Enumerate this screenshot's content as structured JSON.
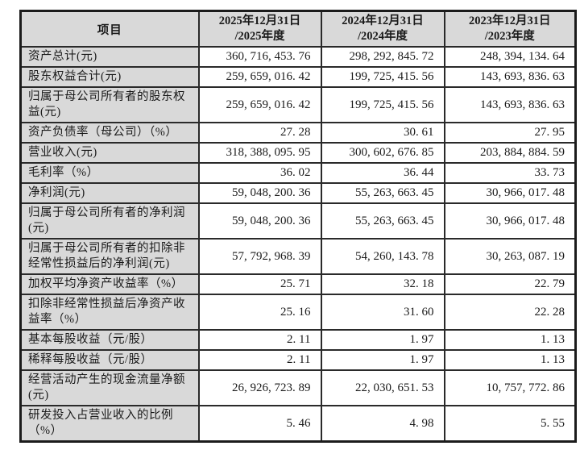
{
  "colors": {
    "outer_border": "#1b1b1b",
    "inner_border": "#2a2a2a",
    "header_and_item_background": "#d9d9d9",
    "value_cell_background": "#ffffff",
    "text": "#1a1a1a"
  },
  "table": {
    "header": {
      "item_label": "项目",
      "period_columns": [
        {
          "line1": "2025年12月31日",
          "line2": "/2025年度"
        },
        {
          "line1": "2024年12月31日",
          "line2": "/2024年度"
        },
        {
          "line1": "2023年12月31日",
          "line2": "/2023年度"
        }
      ]
    },
    "rows": [
      {
        "item": "资产总计(元)",
        "values": [
          "360, 716, 453. 76",
          "298, 292, 845. 72",
          "248, 394, 134. 64"
        ]
      },
      {
        "item": "股东权益合计(元)",
        "values": [
          "259, 659, 016. 42",
          "199, 725, 415. 56",
          "143, 693, 836. 63"
        ]
      },
      {
        "item": "归属于母公司所有者的股东权益(元)",
        "values": [
          "259, 659, 016. 42",
          "199, 725, 415. 56",
          "143, 693, 836. 63"
        ]
      },
      {
        "item": "资产负债率（母公司）（%）",
        "values": [
          "27. 28",
          "30. 61",
          "27. 95"
        ]
      },
      {
        "item": "营业收入(元)",
        "values": [
          "318, 388, 095. 95",
          "300, 602, 676. 85",
          "203, 884, 884. 59"
        ]
      },
      {
        "item": "毛利率（%）",
        "values": [
          "36. 02",
          "36. 44",
          "33. 73"
        ]
      },
      {
        "item": "净利润(元)",
        "values": [
          "59, 048, 200. 36",
          "55, 263, 663. 45",
          "30, 966, 017. 48"
        ]
      },
      {
        "item": "归属于母公司所有者的净利润(元)",
        "values": [
          "59, 048, 200. 36",
          "55, 263, 663. 45",
          "30, 966, 017. 48"
        ]
      },
      {
        "item": "归属于母公司所有者的扣除非经常性损益后的净利润(元)",
        "values": [
          "57, 792, 968. 39",
          "54, 260, 143. 78",
          "30, 263, 087. 19"
        ]
      },
      {
        "item": "加权平均净资产收益率（%）",
        "values": [
          "25. 71",
          "32. 18",
          "22. 79"
        ]
      },
      {
        "item": "扣除非经常性损益后净资产收益率（%）",
        "values": [
          "25. 16",
          "31. 60",
          "22. 28"
        ]
      },
      {
        "item": "基本每股收益（元/股）",
        "values": [
          "2. 11",
          "1. 97",
          "1. 13"
        ]
      },
      {
        "item": "稀释每股收益（元/股）",
        "values": [
          "2. 11",
          "1. 97",
          "1. 13"
        ]
      },
      {
        "item": "经营活动产生的现金流量净额(元)",
        "values": [
          "26, 926, 723. 89",
          "22, 030, 651. 53",
          "10, 757, 772. 86"
        ]
      },
      {
        "item": "研发投入占营业收入的比例（%）",
        "values": [
          "5. 46",
          "4. 98",
          "5. 55"
        ]
      }
    ]
  }
}
